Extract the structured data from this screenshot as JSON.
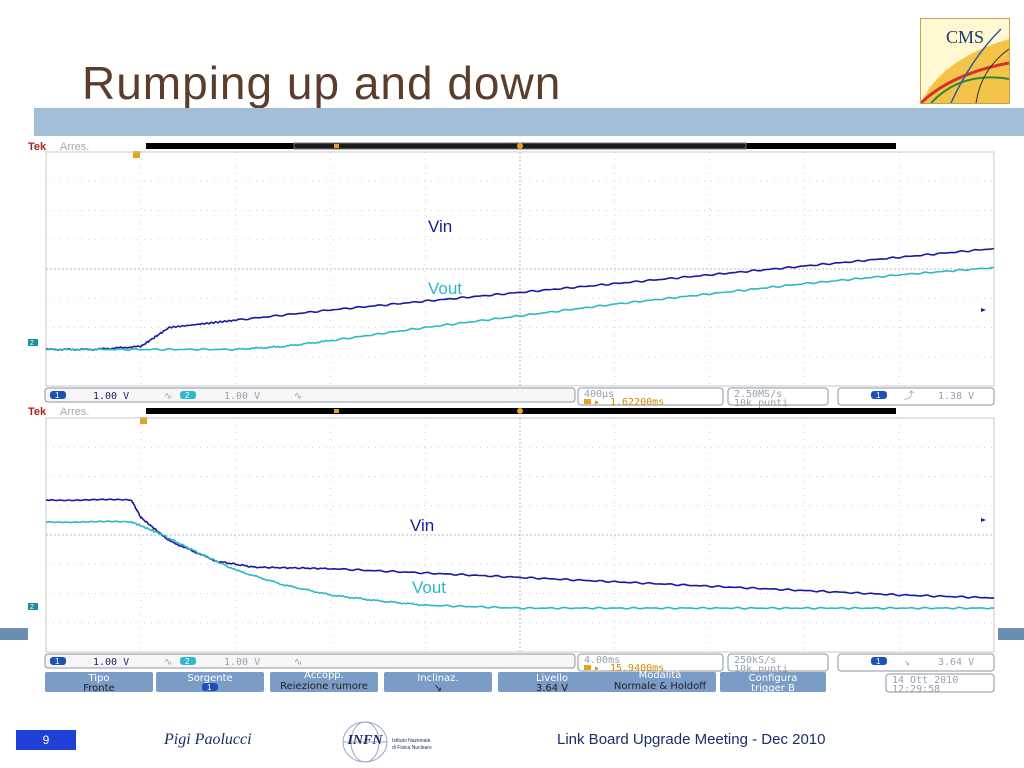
{
  "slide": {
    "title": "Rumping up and down",
    "page_number": "9",
    "author": "Pigi Paolucci",
    "meeting": "Link Board Upgrade Meeting - Dec 2010",
    "cms_logo_text": "CMS",
    "infn_logo_text": "INFN",
    "infn_logo_line1": "Istituto Nazionale",
    "infn_logo_line2": "di Fisica Nucleare",
    "colors": {
      "title": "#5a3e2b",
      "title_bar": "#a3bfd7",
      "page_badge": "#1f3fd6",
      "footer_text": "#1a2d6b"
    }
  },
  "chart_data": [
    {
      "type": "line",
      "scope_label": "Tek",
      "scope_mode": "Arres.",
      "annotations": [
        "Vin",
        "Vout"
      ],
      "series": [
        {
          "name": "Vin",
          "color": "#1a1aa0",
          "x": [
            0,
            0.5,
            1.0,
            1.3,
            2.0,
            3.0,
            4.0,
            5.0,
            6.0,
            7.0,
            8.0,
            9.0,
            10.0
          ],
          "y": [
            -0.05,
            -0.05,
            0.05,
            0.7,
            0.95,
            1.3,
            1.6,
            1.9,
            2.2,
            2.5,
            2.8,
            3.1,
            3.4
          ]
        },
        {
          "name": "Vout",
          "color": "#2db8c8",
          "x": [
            0,
            1.0,
            2.0,
            2.5,
            3.0,
            4.0,
            5.0,
            6.0,
            7.0,
            8.0,
            9.0,
            10.0
          ],
          "y": [
            -0.05,
            -0.05,
            -0.05,
            0.05,
            0.25,
            0.7,
            1.1,
            1.5,
            1.85,
            2.2,
            2.5,
            2.75
          ]
        }
      ],
      "xlim": [
        0,
        10
      ],
      "ylim": [
        -4,
        4
      ],
      "status": {
        "ch1_scale": "1.00 V",
        "ch1_badge": "1",
        "ch2_scale": "1.00 V",
        "ch2_badge": "2",
        "timebase": "400μs",
        "trigger_pos": "1.62200ms",
        "sample_rate": "2.50MS/s",
        "record_length": "10k punti",
        "trigger_ch": "1",
        "trigger_level": "1.38 V"
      }
    },
    {
      "type": "line",
      "scope_label": "Tek",
      "scope_mode": "Arres.",
      "annotations": [
        "Vin",
        "Vout"
      ],
      "series": [
        {
          "name": "Vin",
          "color": "#1a1aa0",
          "x": [
            0,
            0.9,
            1.0,
            1.3,
            1.8,
            2.2,
            3.0,
            4.0,
            5.0,
            6.0,
            7.0,
            8.0,
            9.0,
            10.0
          ],
          "y": [
            3.7,
            3.7,
            3.1,
            2.3,
            1.6,
            1.4,
            1.35,
            1.2,
            1.05,
            0.9,
            0.75,
            0.6,
            0.45,
            0.35
          ]
        },
        {
          "name": "Vout",
          "color": "#2db8c8",
          "x": [
            0,
            0.9,
            1.2,
            1.6,
            2.0,
            2.5,
            3.0,
            3.5,
            4.0,
            5.0,
            6.0,
            7.0,
            8.0,
            9.0,
            10.0
          ],
          "y": [
            2.95,
            2.95,
            2.55,
            1.9,
            1.3,
            0.8,
            0.45,
            0.25,
            0.1,
            0.0,
            0.0,
            0.0,
            0.0,
            0.0,
            0.0
          ]
        }
      ],
      "xlim": [
        0,
        10
      ],
      "ylim": [
        -4,
        4
      ],
      "status": {
        "ch1_scale": "1.00 V",
        "ch1_badge": "1",
        "ch2_scale": "1.00 V",
        "ch2_badge": "2",
        "timebase": "4.00ms",
        "trigger_pos": "15.9400ms",
        "sample_rate": "250kS/s",
        "record_length": "10k punti",
        "trigger_ch": "1",
        "trigger_level": "3.64 V"
      },
      "softkeys": [
        {
          "title": "Tipo",
          "value": "Fronte"
        },
        {
          "title": "Sorgente",
          "value": "1"
        },
        {
          "title": "Accopp.",
          "value": "Reiezione rumore"
        },
        {
          "title": "Inclinaz.",
          "value": "↘"
        },
        {
          "title": "Livello",
          "value": "3.64 V"
        },
        {
          "title": "Modalità",
          "value": "Normale & Holdoff"
        },
        {
          "title": "Configura",
          "value": "trigger B"
        }
      ],
      "date": "14 Ott  2010",
      "time": "12:29:58"
    }
  ]
}
